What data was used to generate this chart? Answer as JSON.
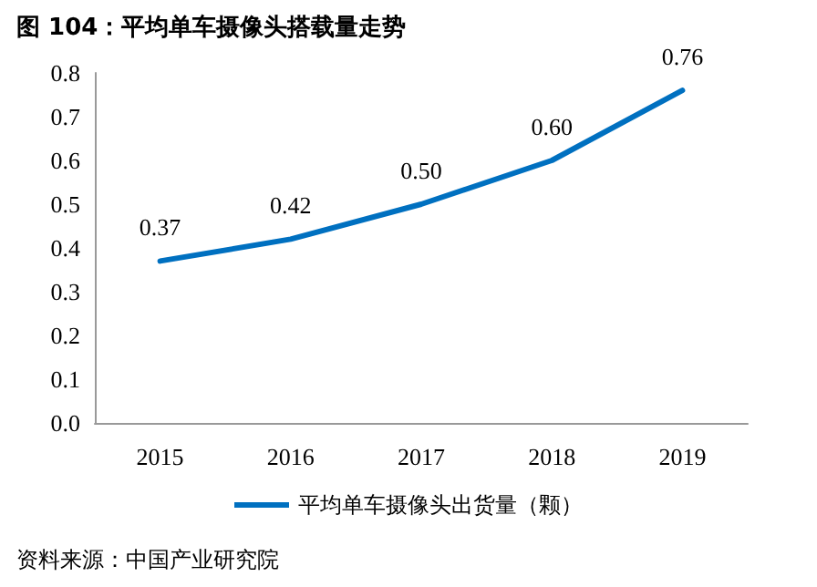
{
  "chart_data": {
    "type": "line",
    "title": "图 104：平均单车摄像头搭载量走势",
    "categories": [
      "2015",
      "2016",
      "2017",
      "2018",
      "2019"
    ],
    "series": [
      {
        "name": "平均单车摄像头出货量（颗）",
        "color": "#0070c0",
        "values": [
          0.37,
          0.42,
          0.5,
          0.6,
          0.76
        ],
        "value_labels": [
          "0.37",
          "0.42",
          "0.50",
          "0.60",
          "0.76"
        ]
      }
    ],
    "ylim": [
      0,
      0.8
    ],
    "yticks": [
      {
        "value": 0,
        "label": "0.0"
      },
      0.1,
      0.2,
      0.3,
      0.4,
      0.5,
      0.6,
      0.7,
      0.8
    ],
    "grid": false,
    "legend": "bottom",
    "marker": "none",
    "line_style": "solid",
    "annotations": [
      "资料来源：中国产业研究院"
    ]
  }
}
